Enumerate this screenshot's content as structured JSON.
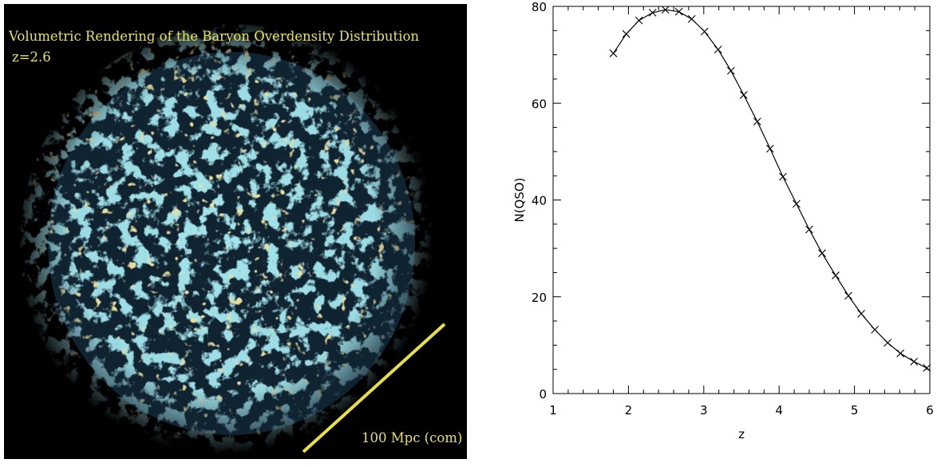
{
  "render": {
    "title": "Volumetric Rendering of the Baryon Overdensity Distribution",
    "redshift_label": "z=2.6",
    "scale_label": "100 Mpc (com)",
    "colors": {
      "background": "#000000",
      "text": "#e8e25a",
      "filament": "#5fc7d6",
      "knot": "#d6c35a",
      "scale_bar": "#e8e040"
    }
  },
  "chart_data": {
    "type": "line",
    "title": "",
    "xlabel": "z",
    "ylabel": "N(QSO)",
    "xlim": [
      1,
      6
    ],
    "ylim": [
      0,
      80
    ],
    "xticks": [
      1,
      2,
      3,
      4,
      5,
      6
    ],
    "yticks": [
      0,
      20,
      40,
      60,
      80
    ],
    "grid": false,
    "series": [
      {
        "marker": "x",
        "x": [
          1.8,
          1.97,
          2.14,
          2.32,
          2.49,
          2.67,
          2.84,
          3.01,
          3.19,
          3.36,
          3.53,
          3.71,
          3.88,
          4.05,
          4.23,
          4.4,
          4.57,
          4.75,
          4.92,
          5.09,
          5.27,
          5.44,
          5.61,
          5.79,
          5.96
        ],
        "y": [
          70.3,
          74.3,
          77.1,
          78.7,
          79.3,
          78.9,
          77.4,
          74.8,
          71.1,
          66.7,
          61.7,
          56.2,
          50.6,
          44.8,
          39.2,
          33.9,
          29.0,
          24.4,
          20.2,
          16.5,
          13.2,
          10.5,
          8.3,
          6.6,
          5.3
        ]
      }
    ]
  }
}
